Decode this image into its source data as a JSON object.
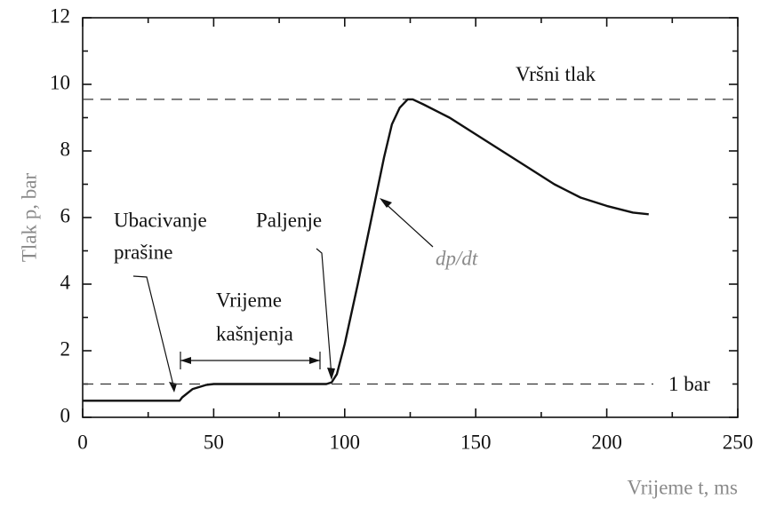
{
  "chart_data": {
    "type": "line",
    "y_label": "Tlak p, bar",
    "x_label": "Vrijeme t, ms",
    "xlim": [
      0,
      250
    ],
    "xticks": [
      0,
      50,
      100,
      150,
      200,
      250
    ],
    "xticks_minor": [
      25,
      75,
      125,
      175,
      225
    ],
    "ylim": [
      0,
      12
    ],
    "yticks": [
      0,
      2,
      4,
      6,
      8,
      10,
      12
    ],
    "yticks_minor": [
      1,
      3,
      5,
      7,
      9,
      11
    ],
    "x": [
      0,
      37,
      38,
      42,
      47,
      50,
      93,
      95,
      97,
      100,
      105,
      110,
      115,
      118,
      121,
      124,
      126,
      130,
      140,
      150,
      160,
      170,
      180,
      190,
      200,
      210,
      216
    ],
    "values": [
      0.5,
      0.5,
      0.6,
      0.85,
      0.97,
      1.0,
      1.0,
      1.05,
      1.3,
      2.2,
      4.0,
      5.9,
      7.8,
      8.8,
      9.3,
      9.55,
      9.55,
      9.4,
      9.0,
      8.5,
      8.0,
      7.5,
      7.0,
      6.6,
      6.35,
      6.15,
      6.1
    ],
    "color": "#111111",
    "reference_lines": [
      {
        "value": 9.55,
        "label": "Vršni tlak"
      },
      {
        "value": 1,
        "label": "1 bar"
      }
    ],
    "annotations": [
      "Ubacivanje",
      "prašine",
      "Paljenje",
      "Vrijeme",
      "kašnjenja",
      "dp/dt"
    ]
  }
}
